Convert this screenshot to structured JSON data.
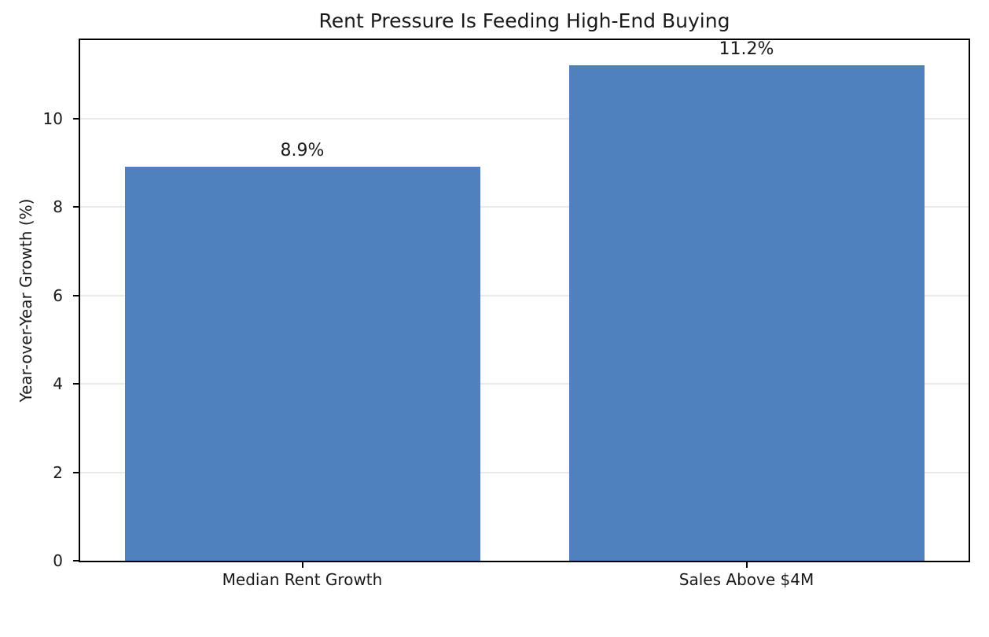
{
  "chart_data": {
    "type": "bar",
    "title": "Rent Pressure Is Feeding High-End Buying",
    "xlabel": "",
    "ylabel": "Year-over-Year Growth (%)",
    "categories": [
      "Median Rent Growth",
      "Sales Above $4M"
    ],
    "values": [
      8.9,
      11.2
    ],
    "bar_labels": [
      "8.9%",
      "11.2%"
    ],
    "yticks": [
      0,
      2,
      4,
      6,
      8,
      10
    ],
    "ylim": [
      0,
      11.77
    ],
    "bar_width_fraction": 0.8,
    "grid": "horizontal-only",
    "legend": "none",
    "bar_color": "#4e81bd",
    "grid_color": "#e9e9e9",
    "spine_color": "#000000",
    "text_color": "#1a1a1a",
    "background": "#ffffff"
  }
}
